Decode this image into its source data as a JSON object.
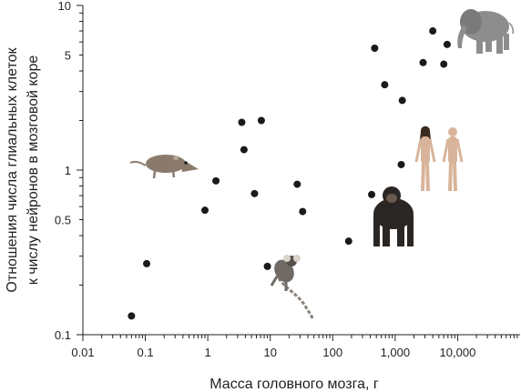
{
  "chart_data": {
    "type": "scatter",
    "xscale": "log",
    "yscale": "log",
    "xlim": [
      0.01,
      100000
    ],
    "ylim": [
      0.1,
      10
    ],
    "xlabel": "Масса головного мозга, г",
    "ylabel_line1": "Отношения числа глиальных клеток",
    "ylabel_line2": "к числу нейронов в мозговой коре",
    "x_ticks": [
      {
        "value": 0.01,
        "label": "0.01"
      },
      {
        "value": 0.1,
        "label": "0.1"
      },
      {
        "value": 1,
        "label": "1"
      },
      {
        "value": 10,
        "label": "10"
      },
      {
        "value": 100,
        "label": "100"
      },
      {
        "value": 1000,
        "label": "1,000"
      },
      {
        "value": 10000,
        "label": "10,000"
      }
    ],
    "y_ticks": [
      {
        "value": 0.1,
        "label": "0.1"
      },
      {
        "value": 0.5,
        "label": "0.5"
      },
      {
        "value": 1,
        "label": "1"
      },
      {
        "value": 5,
        "label": "5"
      },
      {
        "value": 10,
        "label": "10"
      }
    ],
    "points": [
      {
        "x": 0.06,
        "y": 0.13
      },
      {
        "x": 0.105,
        "y": 0.27
      },
      {
        "x": 0.9,
        "y": 0.57
      },
      {
        "x": 1.35,
        "y": 0.86
      },
      {
        "x": 3.5,
        "y": 1.95
      },
      {
        "x": 3.8,
        "y": 1.33
      },
      {
        "x": 5.6,
        "y": 0.72
      },
      {
        "x": 7.2,
        "y": 2.0
      },
      {
        "x": 9.0,
        "y": 0.26
      },
      {
        "x": 27,
        "y": 0.82
      },
      {
        "x": 33,
        "y": 0.56
      },
      {
        "x": 180,
        "y": 0.37
      },
      {
        "x": 420,
        "y": 0.71
      },
      {
        "x": 470,
        "y": 5.5
      },
      {
        "x": 680,
        "y": 3.3
      },
      {
        "x": 1250,
        "y": 1.08
      },
      {
        "x": 1300,
        "y": 2.65
      },
      {
        "x": 2800,
        "y": 4.5
      },
      {
        "x": 4000,
        "y": 7.0
      },
      {
        "x": 6000,
        "y": 4.4
      },
      {
        "x": 6800,
        "y": 5.8
      }
    ],
    "images": [
      {
        "name": "shrew-image",
        "kind": "shrew"
      },
      {
        "name": "marmoset-image",
        "kind": "marmoset"
      },
      {
        "name": "chimpanzee-image",
        "kind": "chimp"
      },
      {
        "name": "humans-image",
        "kind": "humans"
      },
      {
        "name": "elephant-image",
        "kind": "elephant"
      }
    ],
    "colors": {
      "axis": "#231f20",
      "point": "#1a1a1a",
      "shrew": "#8a7a6c",
      "marmoset": "#6f6a64",
      "chimp": "#2a2624",
      "skin": "#d8b49a",
      "elephant": "#8d8d8d"
    }
  }
}
